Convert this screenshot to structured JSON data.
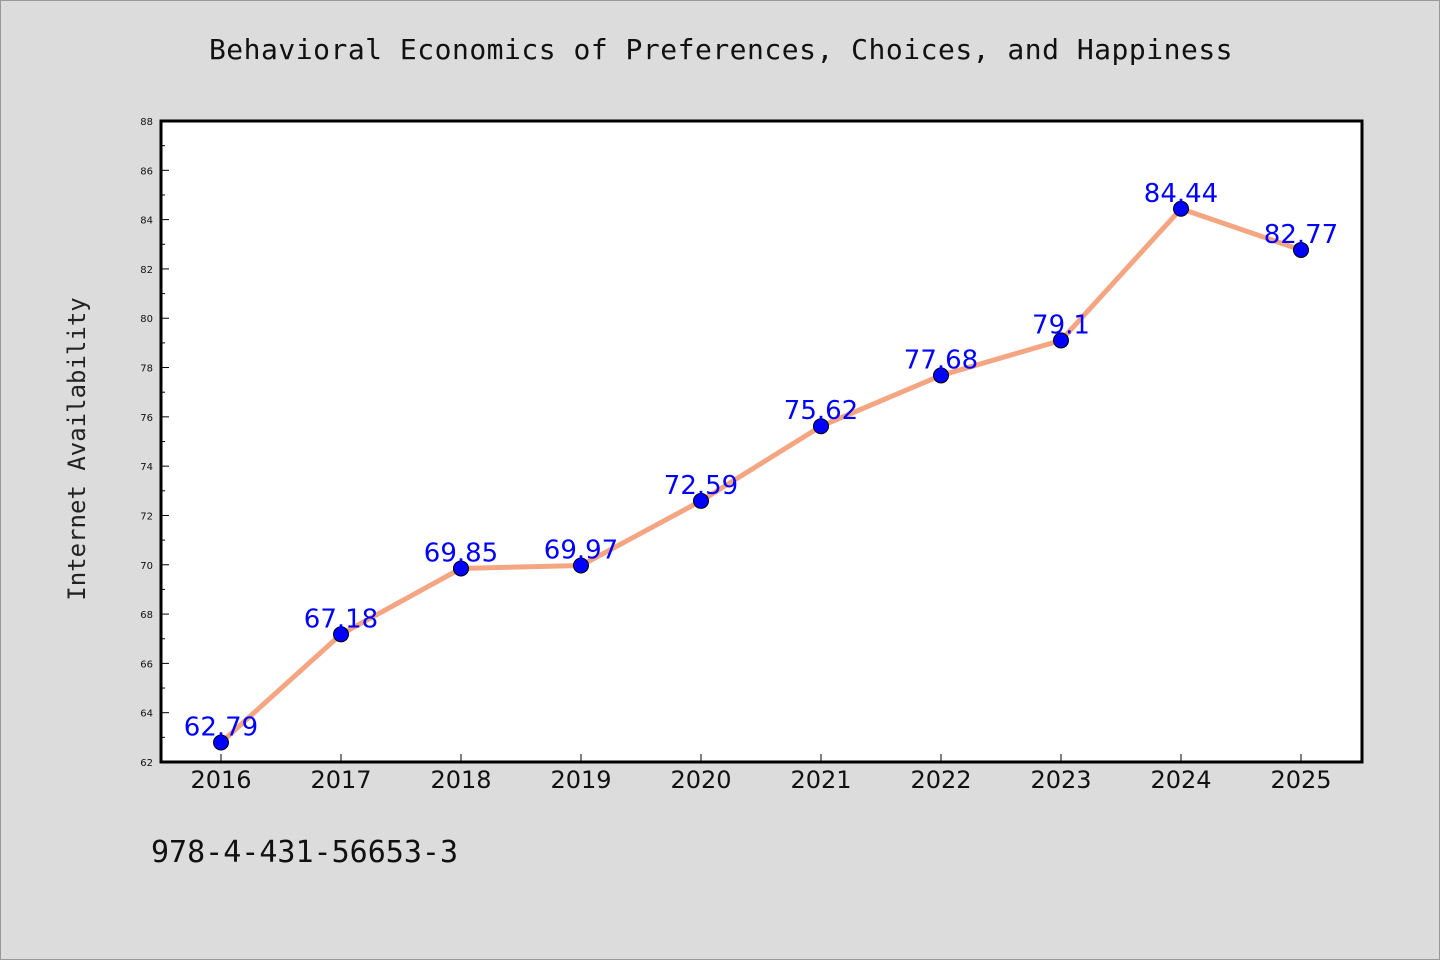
{
  "chart_data": {
    "type": "line",
    "title": "Behavioral Economics of Preferences, Choices, and Happiness",
    "xlabel": "",
    "ylabel": "Internet Availability",
    "categories": [
      "2016",
      "2017",
      "2018",
      "2019",
      "2020",
      "2021",
      "2022",
      "2023",
      "2024",
      "2025"
    ],
    "values": [
      62.79,
      67.18,
      69.85,
      69.97,
      72.59,
      75.62,
      77.68,
      79.1,
      84.44,
      82.77
    ],
    "data_labels": [
      "62.79",
      "67.18",
      "69.85",
      "69.97",
      "72.59",
      "75.62",
      "77.68",
      "79.1",
      "84.44",
      "82.77"
    ],
    "ylim": [
      62,
      88
    ],
    "yticks": [
      62,
      64,
      66,
      68,
      70,
      72,
      74,
      76,
      78,
      80,
      82,
      84,
      86,
      88
    ],
    "grid": false,
    "legend": "none",
    "line_color": "#f4a582",
    "marker_color": "#0000ff",
    "label_color": "#0000ff"
  },
  "footnote": "978-4-431-56653-3"
}
